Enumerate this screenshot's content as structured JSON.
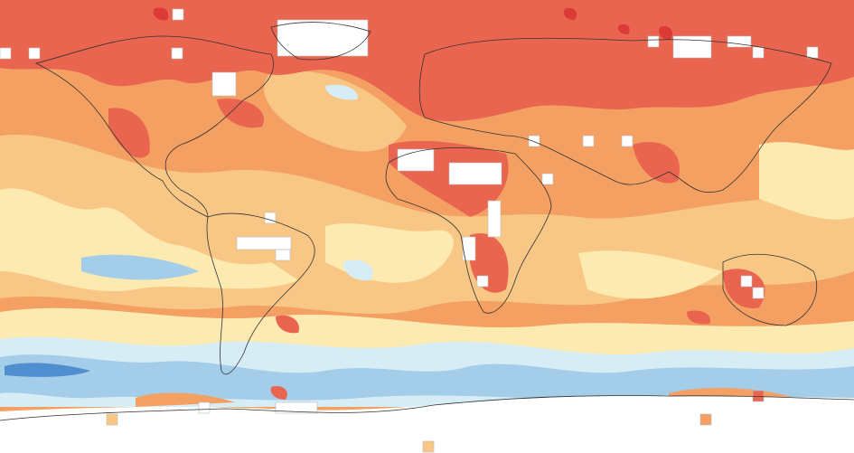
{
  "map": {
    "type": "global temperature anomaly map",
    "palette": {
      "dark_red": "#dc3a36",
      "red": "#e9654f",
      "orange": "#f3a062",
      "light_orange": "#f8c785",
      "pale_yellow": "#fdeab0",
      "light_blue": "#d6edf6",
      "blue": "#a3cde9",
      "dark_blue": "#4f8fd0",
      "no_data": "#ffffff",
      "coastline": "#333333"
    }
  }
}
